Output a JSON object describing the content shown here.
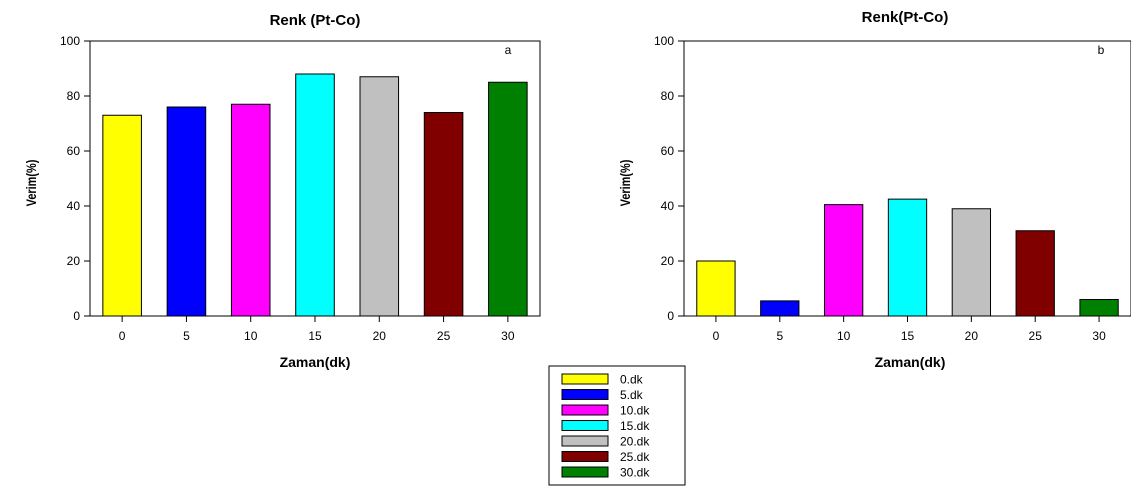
{
  "chart_data": [
    {
      "type": "bar",
      "title": "Renk (Pt-Co)",
      "panel_label": "a",
      "xlabel": "Zaman(dk)",
      "ylabel": "Verim(%)",
      "categories": [
        "0",
        "5",
        "10",
        "15",
        "20",
        "25",
        "30"
      ],
      "values": [
        73,
        76,
        77,
        88,
        87,
        74,
        85
      ],
      "ylim": [
        0,
        100
      ],
      "yticks": [
        0,
        20,
        40,
        60,
        80,
        100
      ],
      "bar_colors": [
        "#ffff00",
        "#0000ff",
        "#ff00ff",
        "#00ffff",
        "#c0c0c0",
        "#800000",
        "#008000"
      ],
      "grid": false
    },
    {
      "type": "bar",
      "title": "Renk(Pt-Co)",
      "panel_label": "b",
      "xlabel": "Zaman(dk)",
      "ylabel": "Verim(%)",
      "categories": [
        "0",
        "5",
        "10",
        "15",
        "20",
        "25",
        "30"
      ],
      "values": [
        20,
        5.5,
        40.5,
        42.5,
        39,
        31,
        6
      ],
      "ylim": [
        0,
        100
      ],
      "yticks": [
        0,
        20,
        40,
        60,
        80,
        100
      ],
      "bar_colors": [
        "#ffff00",
        "#0000ff",
        "#ff00ff",
        "#00ffff",
        "#c0c0c0",
        "#800000",
        "#008000"
      ],
      "grid": false
    }
  ],
  "legend": {
    "placement": "bottom-center",
    "entries": [
      {
        "label": "0.dk",
        "color": "#ffff00"
      },
      {
        "label": "5.dk",
        "color": "#0000ff"
      },
      {
        "label": "10.dk",
        "color": "#ff00ff"
      },
      {
        "label": "15.dk",
        "color": "#00ffff"
      },
      {
        "label": "20.dk",
        "color": "#c0c0c0"
      },
      {
        "label": "25.dk",
        "color": "#800000"
      },
      {
        "label": "30.dk",
        "color": "#008000"
      }
    ]
  }
}
